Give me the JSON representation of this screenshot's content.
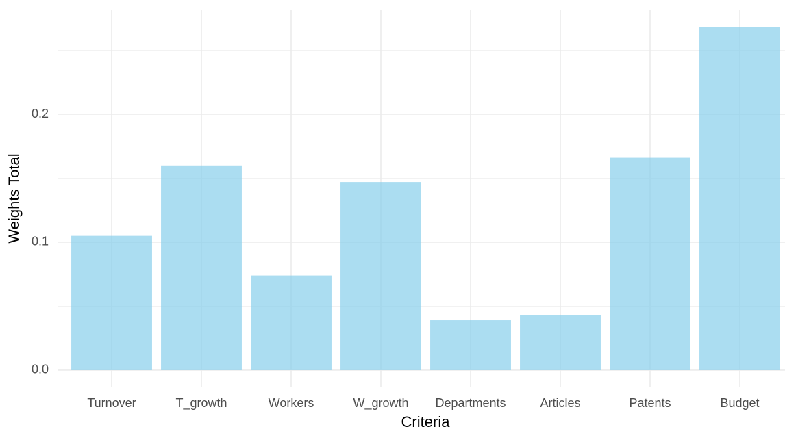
{
  "chart_data": {
    "type": "bar",
    "x_label": "Criteria",
    "y_label": "Weights Total",
    "categories": [
      "Turnover",
      "T_growth",
      "Workers",
      "W_growth",
      "Departments",
      "Articles",
      "Patents",
      "Budget"
    ],
    "values": [
      0.105,
      0.16,
      0.074,
      0.147,
      0.039,
      0.043,
      0.166,
      0.268
    ],
    "color": "#87ceeb",
    "opacity": 0.7,
    "ylim": [
      -0.0134,
      0.2813
    ],
    "yticks": [
      {
        "value": 0,
        "label": "0.0"
      },
      0.1,
      0.2
    ],
    "minor_yticks": [
      0.05,
      0.15,
      0.25
    ],
    "grid": true
  }
}
